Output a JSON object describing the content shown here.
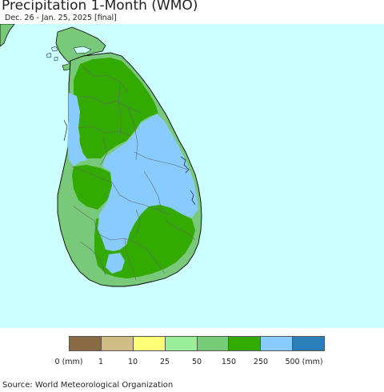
{
  "header": {
    "title": "Precipitation 1-Month (WMO)",
    "subtitle": "Dec. 26 - Jan. 25, 2025 [final]"
  },
  "colors": {
    "ocean": "#ccffff",
    "india_land": "#79c97a",
    "border_lines": "#666666",
    "coast_lines": "#000000"
  },
  "legend": {
    "swatches": [
      {
        "color": "#8a6a45"
      },
      {
        "color": "#cfbd85"
      },
      {
        "color": "#ffff77"
      },
      {
        "color": "#99ee99"
      },
      {
        "color": "#77cc77"
      },
      {
        "color": "#33aa00"
      },
      {
        "color": "#88ccff"
      },
      {
        "color": "#2a7fba"
      }
    ],
    "labels": [
      "0 (mm)",
      "1",
      "10",
      "25",
      "50",
      "150",
      "250",
      "500 (mm)"
    ]
  },
  "footer": {
    "source": "Source: World Meteorological Organization"
  }
}
